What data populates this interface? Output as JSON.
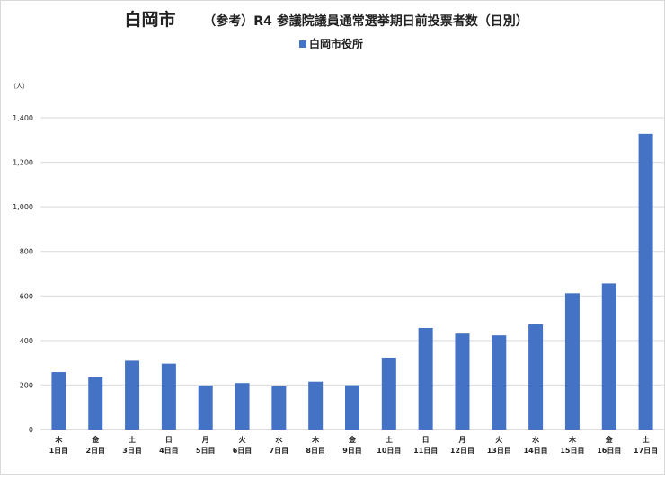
{
  "colors": {
    "bar": "#4472C4",
    "grid": "#d9d9d9",
    "axis": "#bfbfbf",
    "text": "#222222"
  },
  "chart_data": {
    "type": "bar",
    "title_city": "白岡市",
    "title_main": "（参考）R4 参議院議員通常選挙期日前投票者数（日別）",
    "ylabel": "（人）",
    "xlabel": "",
    "ylim": [
      0,
      1400
    ],
    "yticks": [
      "0",
      "200",
      "400",
      "600",
      "800",
      "1,000",
      "1,200",
      "1,400"
    ],
    "ytick_values": [
      0,
      200,
      400,
      600,
      800,
      1000,
      1200,
      1400
    ],
    "grid": true,
    "legend_position": "top",
    "categories_weekday": [
      "木",
      "金",
      "土",
      "日",
      "月",
      "火",
      "水",
      "木",
      "金",
      "土",
      "日",
      "月",
      "火",
      "水",
      "木",
      "金",
      "土"
    ],
    "categories_day": [
      "1日目",
      "2日目",
      "3日目",
      "4日目",
      "5日目",
      "6日目",
      "7日目",
      "8日目",
      "9日目",
      "10日目",
      "11日目",
      "12日目",
      "13日目",
      "14日目",
      "15日目",
      "16日目",
      "17日目"
    ],
    "series": [
      {
        "name": "白岡市役所",
        "values": [
          258,
          234,
          309,
          296,
          198,
          209,
          195,
          215,
          199,
          323,
          456,
          431,
          423,
          472,
          612,
          656,
          1328
        ]
      }
    ]
  }
}
